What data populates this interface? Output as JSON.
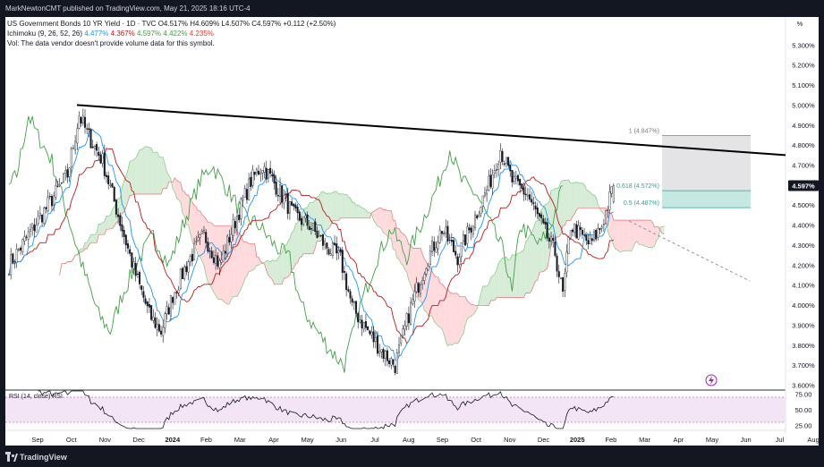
{
  "header": {
    "published": "MarkNewtonCMT published on TradingView.com, May 21, 2025 18:16 UTC-4"
  },
  "legend": {
    "symbol": "US Government Bonds 10 YR Yield · 1D · TVC",
    "ohlc": "O4.517% H4.609% L4.507% C4.597% +0.112 (+2.50%)",
    "ichimoku_label": "Ichimoku (9, 26, 52, 26)",
    "ichimoku_values": [
      "4.477%",
      "4.367%",
      "4.597%",
      "4.422%",
      "4.235%"
    ],
    "vol_text": "Vol: The data vendor doesn't provide volume data for this symbol."
  },
  "rsi_legend": "RSI (14, close) RSI",
  "footer": {
    "brand": "TradingView"
  },
  "colors": {
    "candle": "#131722",
    "tenkan": "#2196f3",
    "kijun": "#b71c1c",
    "chikou": "#43a047",
    "span_a": "#a5d6a7",
    "span_b": "#ef9a9a",
    "cloud_bull": "#c8e6c9",
    "cloud_bear": "#ffcdd2",
    "trendline": "#000000",
    "fib_top": "#d9d9dc",
    "fib_mid": "#bfe6df",
    "rsi_band": "#f3e5f5",
    "rsi_line": "#131722",
    "last_price_bg": "#131722"
  },
  "chart_data": {
    "type": "candlestick",
    "title": "US Government Bonds 10 YR Yield",
    "y_axis": {
      "unit": "%",
      "ticks": [
        "5.300%",
        "5.200%",
        "5.100%",
        "5.000%",
        "4.900%",
        "4.800%",
        "4.700%",
        "4.597%",
        "4.500%",
        "4.400%",
        "4.300%",
        "4.200%",
        "4.100%",
        "4.000%",
        "3.900%",
        "3.800%",
        "3.700%",
        "3.600%"
      ],
      "range": [
        3.58,
        5.44
      ]
    },
    "x_axis": {
      "ticks": [
        "Sep",
        "Oct",
        "Nov",
        "Dec",
        "2024",
        "Feb",
        "Mar",
        "Apr",
        "May",
        "Jun",
        "Jul",
        "Aug",
        "Sep",
        "Oct",
        "Nov",
        "Dec",
        "2025",
        "Feb",
        "Mar",
        "Apr",
        "May",
        "Jun",
        "Jul",
        "Aug"
      ]
    },
    "price_path": [
      [
        0,
        4.2
      ],
      [
        10,
        4.35
      ],
      [
        20,
        4.5
      ],
      [
        30,
        4.65
      ],
      [
        36,
        4.95
      ],
      [
        40,
        4.86
      ],
      [
        48,
        4.72
      ],
      [
        56,
        4.45
      ],
      [
        64,
        4.18
      ],
      [
        72,
        3.95
      ],
      [
        78,
        3.87
      ],
      [
        84,
        4.05
      ],
      [
        92,
        4.22
      ],
      [
        100,
        4.35
      ],
      [
        108,
        4.2
      ],
      [
        116,
        4.42
      ],
      [
        124,
        4.62
      ],
      [
        130,
        4.7
      ],
      [
        138,
        4.58
      ],
      [
        146,
        4.45
      ],
      [
        154,
        4.4
      ],
      [
        162,
        4.3
      ],
      [
        170,
        4.23
      ],
      [
        176,
        3.99
      ],
      [
        184,
        3.87
      ],
      [
        192,
        3.76
      ],
      [
        198,
        3.7
      ],
      [
        206,
        3.99
      ],
      [
        214,
        4.22
      ],
      [
        222,
        4.38
      ],
      [
        230,
        4.24
      ],
      [
        238,
        4.42
      ],
      [
        246,
        4.6
      ],
      [
        252,
        4.78
      ],
      [
        258,
        4.62
      ],
      [
        266,
        4.55
      ],
      [
        274,
        4.38
      ],
      [
        280,
        4.26
      ],
      [
        284,
        4.05
      ],
      [
        288,
        4.4
      ],
      [
        292,
        4.36
      ],
      [
        298,
        4.3
      ],
      [
        304,
        4.4
      ],
      [
        310,
        4.597
      ]
    ],
    "trendline": [
      [
        0,
        5.0
      ],
      [
        380,
        4.75
      ]
    ],
    "fib_levels": [
      {
        "label": "1 (4.847%)",
        "value": 4.847
      },
      {
        "label": "0.618 (4.572%)",
        "value": 4.572
      },
      {
        "label": "0.5 (4.487%)",
        "value": 4.487
      }
    ],
    "last_price": "4.597%",
    "rsi": {
      "ticks": [
        "75.00",
        "50.00",
        "25.00"
      ],
      "range": [
        20,
        80
      ]
    }
  }
}
